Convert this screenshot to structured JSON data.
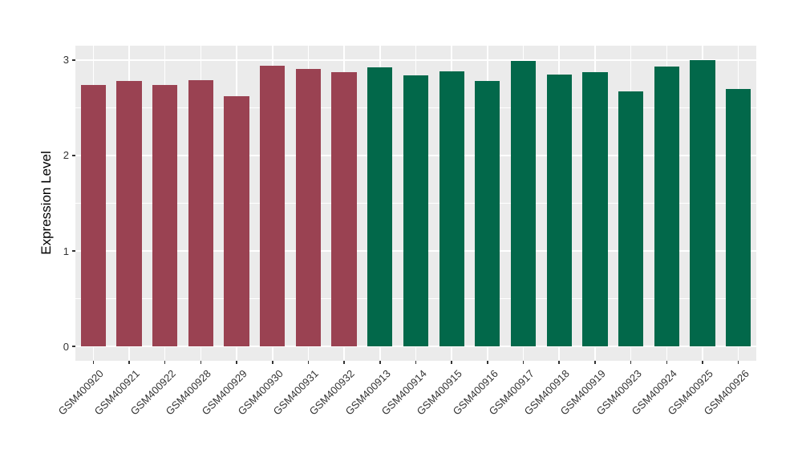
{
  "chart_data": {
    "type": "bar",
    "title": "",
    "xlabel": "",
    "ylabel": "Expression Level",
    "categories": [
      "GSM400920",
      "GSM400921",
      "GSM400922",
      "GSM400928",
      "GSM400929",
      "GSM400930",
      "GSM400931",
      "GSM400932",
      "GSM400913",
      "GSM400914",
      "GSM400915",
      "GSM400916",
      "GSM400917",
      "GSM400918",
      "GSM400919",
      "GSM400923",
      "GSM400924",
      "GSM400925",
      "GSM400926"
    ],
    "values": [
      2.74,
      2.78,
      2.74,
      2.79,
      2.62,
      2.94,
      2.91,
      2.87,
      2.92,
      2.84,
      2.88,
      2.78,
      2.99,
      2.85,
      2.87,
      2.67,
      2.93,
      3.0,
      2.7
    ],
    "palette": {
      "maroon": "#9A4252",
      "green": "#02684A"
    },
    "bar_color_keys": [
      "maroon",
      "maroon",
      "maroon",
      "maroon",
      "maroon",
      "maroon",
      "maroon",
      "maroon",
      "green",
      "green",
      "green",
      "green",
      "green",
      "green",
      "green",
      "green",
      "green",
      "green",
      "green"
    ],
    "yticks": [
      0,
      1,
      2,
      3
    ],
    "ytick_labels": [
      "0",
      "1",
      "2",
      "3"
    ],
    "ylim": [
      0,
      3
    ],
    "y_expansion_mult": 0.05,
    "grid": true,
    "legend_position": "none",
    "panel_bg": "#EBEBEB",
    "grid_color": "#FFFFFF",
    "tick_color": "#333333"
  }
}
